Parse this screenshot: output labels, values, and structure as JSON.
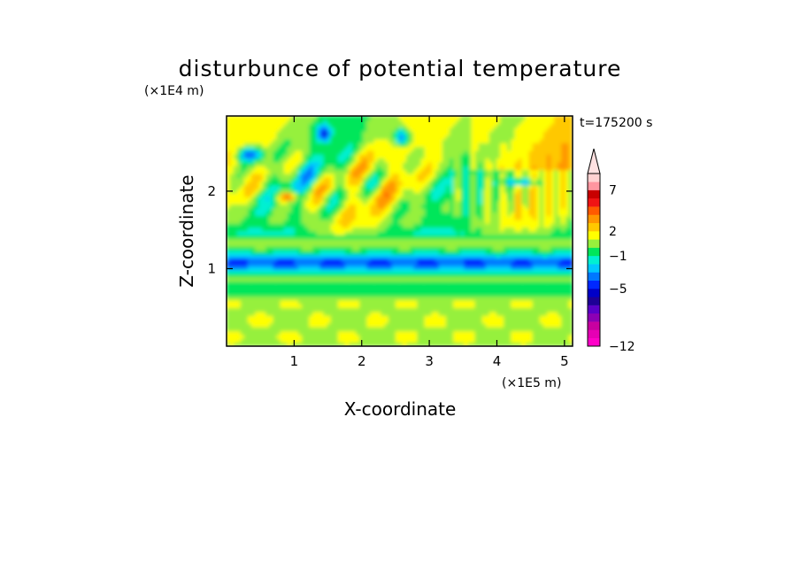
{
  "chart_data": {
    "type": "heatmap",
    "title": "disturbunce of potential temperature",
    "xlabel": "X-coordinate",
    "ylabel": "Z-coordinate",
    "x_unit": "(×1E5 m)",
    "y_unit": "(×1E4 m)",
    "time_label": "t=175200 s",
    "xlim": [
      0,
      5.12
    ],
    "ylim": [
      0,
      2.97
    ],
    "x_ticks": [
      1,
      2,
      3,
      4,
      5
    ],
    "y_ticks": [
      1,
      2
    ],
    "colorbar": {
      "levels": [
        -12,
        -11,
        -10,
        -9,
        -8,
        -7,
        -6,
        -5,
        -4,
        -3,
        -2,
        -1,
        0,
        1,
        2,
        3,
        4,
        5,
        6,
        7,
        8,
        9,
        10
      ],
      "labeled_ticks": [
        {
          "value": -12,
          "label": "−12"
        },
        {
          "value": -5,
          "label": "−5"
        },
        {
          "value": -1,
          "label": "−1"
        },
        {
          "value": 2,
          "label": "2"
        },
        {
          "value": 7,
          "label": "7"
        }
      ],
      "extend": "max",
      "colors": [
        "#ff00c8",
        "#e600b4",
        "#c800a0",
        "#8c00b4",
        "#5a00c8",
        "#1e0096",
        "#0000c8",
        "#0028ff",
        "#0078ff",
        "#00c8ff",
        "#00f0d2",
        "#00e65a",
        "#96f03c",
        "#ffff00",
        "#ffc800",
        "#ff9600",
        "#ff5a00",
        "#f01414",
        "#c80000",
        "#ff96a0",
        "#ffd2d2",
        "#ffe1e1"
      ]
    },
    "features": [
      {
        "x": [
          0.0,
          5.12
        ],
        "z": [
          0.95,
          1.3
        ],
        "value": -4,
        "description_label": ""
      },
      {
        "x": [
          0.0,
          5.12
        ],
        "z": [
          0.0,
          0.55
        ],
        "value": 0
      },
      {
        "x": [
          0.8,
          1.0
        ],
        "z": [
          1.9,
          2.0
        ],
        "value": 7
      }
    ]
  }
}
